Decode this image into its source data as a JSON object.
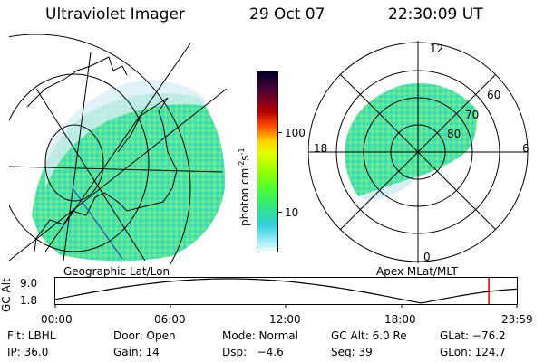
{
  "header": {
    "title": "Ultraviolet Imager",
    "date": "29 Oct 07",
    "time": "22:30:09 UT"
  },
  "left_panel": {
    "caption": "Geographic Lat/Lon"
  },
  "right_panel": {
    "caption": "Apex MLat/MLT",
    "mlt_labels": {
      "top": "12",
      "left": "18",
      "right": "6",
      "bottom": "0"
    },
    "mlat_labels": [
      "60",
      "70",
      "80"
    ]
  },
  "colorbar": {
    "unit_text": "photon cm",
    "unit_exp1": "-2",
    "unit_mid": "s",
    "unit_exp2": "-1",
    "ticks": [
      "100",
      "10"
    ],
    "colors": [
      "#00002a",
      "#1a0033",
      "#4d0033",
      "#80001a",
      "#b30000",
      "#e60000",
      "#ff4d00",
      "#ff9900",
      "#ffcc00",
      "#e6ff00",
      "#99ff00",
      "#4dff33",
      "#33e680",
      "#33d9b3",
      "#33ccd9",
      "#80e6f2",
      "#c8f2fa",
      "#f2fcff"
    ]
  },
  "altitude_plot": {
    "ylabel": "GC Alt",
    "yticks": [
      "9.0",
      "1.8"
    ],
    "xticks": [
      "00:00",
      "06:00",
      "12:00",
      "18:00",
      "23:59"
    ],
    "current_time_hours": 22.5
  },
  "footer": {
    "row1": {
      "flt": "Flt: LBHL",
      "door": "Door: Open",
      "mode": "Mode: Normal",
      "gcalt": "GC Alt: 6.0 Re",
      "glat": "GLat: −76.2"
    },
    "row2": {
      "ip": "IP: 36.0",
      "gain": "Gain: 14",
      "dsp": "Dsp:   −4.6",
      "seq": "Seq: 39",
      "glon": "GLon: 124.7"
    }
  }
}
